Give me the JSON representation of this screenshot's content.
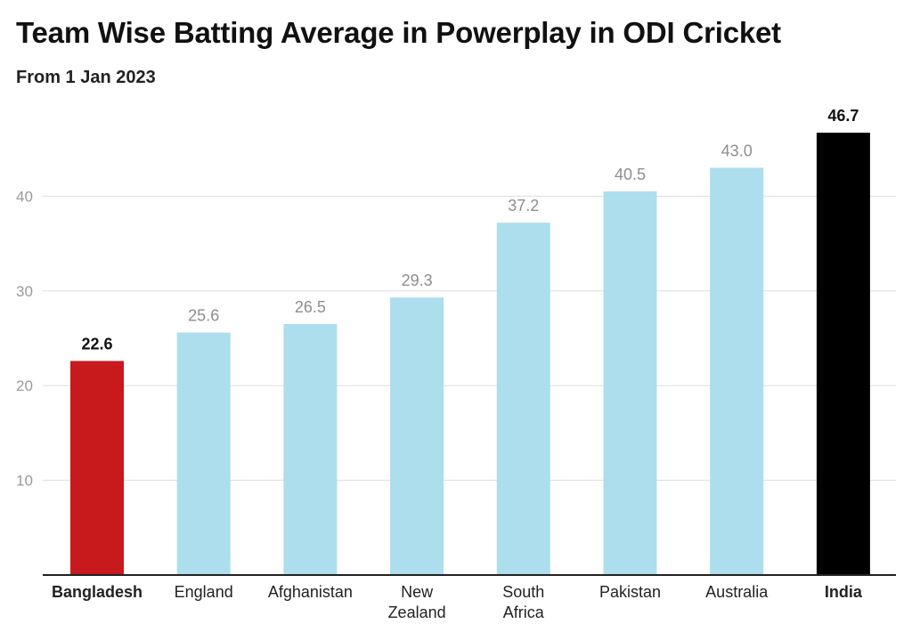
{
  "chart_data": {
    "type": "bar",
    "title": "Team Wise Batting Average in Powerplay in ODI Cricket",
    "subtitle": "From 1 Jan 2023",
    "categories": [
      "Bangladesh",
      "England",
      "Afghanistan",
      "New Zealand",
      "South Africa",
      "Pakistan",
      "Australia",
      "India"
    ],
    "values": [
      22.6,
      25.6,
      26.5,
      29.3,
      37.2,
      40.5,
      43.0,
      46.7
    ],
    "value_labels": [
      "22.6",
      "25.6",
      "26.5",
      "29.3",
      "37.2",
      "40.5",
      "43.0",
      "46.7"
    ],
    "yticks": [
      "10",
      "20",
      "30",
      "40"
    ],
    "ylim": [
      0,
      47
    ],
    "grid": true,
    "highlighted": [
      "Bangladesh",
      "India"
    ],
    "colors": {
      "Bangladesh": "#c8191c",
      "India": "#000000",
      "default": "#acdeed"
    }
  }
}
